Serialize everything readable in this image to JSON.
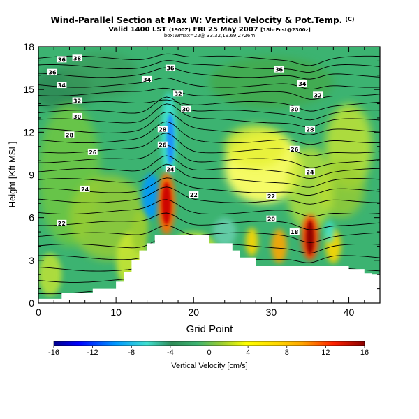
{
  "chart_data": {
    "type": "heatmap",
    "title": "Wind-Parallel Section at Max W: Vertical Velocity & Pot.Temp.",
    "title_unit": "(C)",
    "subtitle_valid": "Valid 1400 LST",
    "subtitle_valid_small": "(1900Z)",
    "subtitle_date": "FRI 25 May 2007",
    "subtitle_fcst": "[18hrFcst@2300z]",
    "subtitle_box": "box:Wmax=22@ 33.32,19.69,2726m",
    "xlabel": "Grid Point",
    "ylabel": "Height [Kft MSL]",
    "xlim": [
      0,
      44
    ],
    "ylim": [
      0,
      18
    ],
    "x_ticks": [
      0,
      10,
      20,
      30,
      40
    ],
    "y_ticks": [
      0,
      3,
      6,
      9,
      12,
      15,
      18
    ],
    "colorbar": {
      "label": "Vertical Velocity [cm/s]",
      "range": [
        -16,
        16
      ],
      "ticks": [
        "-16",
        "-12",
        "-8",
        "-4",
        "0",
        "4",
        "8",
        "12",
        "16"
      ],
      "colors": [
        "#00008b",
        "#0000ff",
        "#0066ff",
        "#00bfff",
        "#40e0d0",
        "#66cdaa",
        "#2e8b57",
        "#3cb371",
        "#6cc644",
        "#9acd32",
        "#c8e632",
        "#ffff00",
        "#ffd700",
        "#ffa500",
        "#ff6a00",
        "#ff2000",
        "#cc0000",
        "#8b0000"
      ]
    },
    "isentrope_labels": [
      {
        "x": 3,
        "y": 17.1,
        "text": "36"
      },
      {
        "x": 5,
        "y": 17.2,
        "text": "38"
      },
      {
        "x": 1.8,
        "y": 16.2,
        "text": "36"
      },
      {
        "x": 3,
        "y": 15.3,
        "text": "34"
      },
      {
        "x": 5,
        "y": 14.2,
        "text": "32"
      },
      {
        "x": 5,
        "y": 13.1,
        "text": "30"
      },
      {
        "x": 4,
        "y": 11.8,
        "text": "28"
      },
      {
        "x": 7,
        "y": 10.6,
        "text": "26"
      },
      {
        "x": 6,
        "y": 8.0,
        "text": "24"
      },
      {
        "x": 3,
        "y": 5.6,
        "text": "22"
      },
      {
        "x": 17,
        "y": 16.5,
        "text": "36"
      },
      {
        "x": 14,
        "y": 15.7,
        "text": "34"
      },
      {
        "x": 18,
        "y": 14.7,
        "text": "32"
      },
      {
        "x": 19,
        "y": 13.6,
        "text": "30"
      },
      {
        "x": 16,
        "y": 12.2,
        "text": "28"
      },
      {
        "x": 16,
        "y": 11.1,
        "text": "26"
      },
      {
        "x": 17,
        "y": 9.4,
        "text": "24"
      },
      {
        "x": 20,
        "y": 7.6,
        "text": "22"
      },
      {
        "x": 31,
        "y": 16.4,
        "text": "36"
      },
      {
        "x": 34,
        "y": 15.4,
        "text": "34"
      },
      {
        "x": 36,
        "y": 14.6,
        "text": "32"
      },
      {
        "x": 33,
        "y": 13.6,
        "text": "30"
      },
      {
        "x": 35,
        "y": 12.2,
        "text": "28"
      },
      {
        "x": 33,
        "y": 10.8,
        "text": "26"
      },
      {
        "x": 35,
        "y": 9.2,
        "text": "24"
      },
      {
        "x": 30,
        "y": 7.5,
        "text": "22"
      },
      {
        "x": 30,
        "y": 5.9,
        "text": "20"
      },
      {
        "x": 33,
        "y": 5.0,
        "text": "18"
      }
    ],
    "features": {
      "downdraft_min": {
        "x": 17,
        "y": 11.5,
        "value": -8
      },
      "updraft_max_1": {
        "x": 16.5,
        "y": 7.5,
        "value": 14
      },
      "updraft_max_2": {
        "x": 35,
        "y": 4.5,
        "value": 16
      }
    },
    "terrain": {
      "x": [
        0,
        3,
        3,
        7,
        7,
        10,
        10,
        11,
        11,
        12,
        12,
        13,
        13,
        14,
        14,
        15,
        15,
        16,
        16,
        22,
        22,
        25,
        25,
        26,
        26,
        28,
        28,
        30,
        30,
        31,
        31,
        34,
        34,
        38,
        38,
        40,
        40,
        42,
        42,
        43,
        43,
        44
      ],
      "y": [
        0.3,
        0.3,
        0.7,
        0.7,
        1.0,
        1.0,
        1.5,
        1.5,
        2.2,
        2.2,
        3.0,
        3.0,
        3.7,
        3.7,
        4.2,
        4.2,
        4.8,
        4.8,
        4.8,
        4.8,
        4.2,
        4.2,
        3.7,
        3.7,
        3.2,
        3.2,
        2.6,
        2.6,
        2.6,
        2.6,
        2.6,
        2.6,
        2.6,
        2.6,
        2.6,
        2.6,
        2.4,
        2.4,
        2.1,
        2.1,
        2.0,
        2.0
      ]
    }
  }
}
